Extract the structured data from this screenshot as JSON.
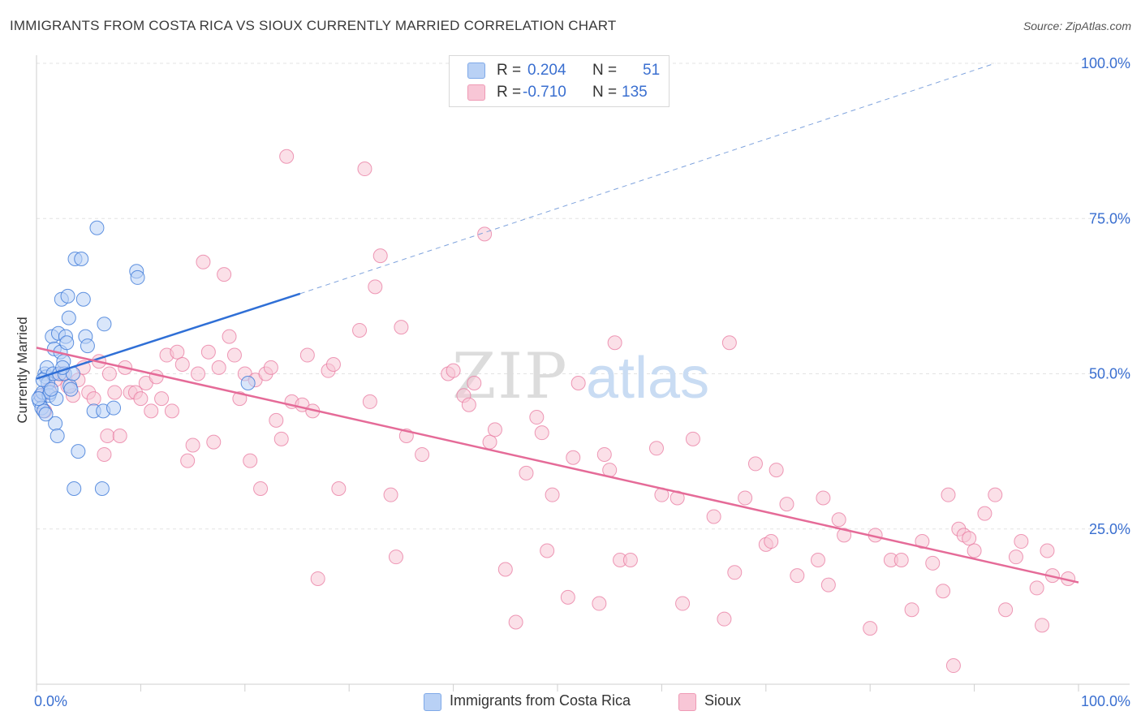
{
  "title": "IMMIGRANTS FROM COSTA RICA VS SIOUX CURRENTLY MARRIED CORRELATION CHART",
  "source": "Source: ZipAtlas.com",
  "watermark": {
    "zip": "ZIP",
    "atlas": "atlas"
  },
  "legend": {
    "r_label": "R =",
    "n_label": "N =",
    "rows": [
      {
        "r": "0.204",
        "n": "51",
        "color": "#7fa9e8",
        "fill": "#b9d1f5"
      },
      {
        "r": "-0.710",
        "n": "135",
        "color": "#ef9ab5",
        "fill": "#f8c6d6"
      }
    ]
  },
  "colors": {
    "blue": "#3b78d8",
    "blue_line": "#2f6fd6",
    "pink": "#e8789f",
    "pink_line": "#e56b98",
    "axis_text": "#3a6fd0",
    "grid": "#e3e3e3"
  },
  "chart_data": {
    "type": "scatter",
    "title": "IMMIGRANTS FROM COSTA RICA VS SIOUX CURRENTLY MARRIED CORRELATION CHART",
    "xlabel": "",
    "ylabel": "Currently Married",
    "xlim": [
      0,
      100
    ],
    "ylim": [
      0,
      100
    ],
    "x_tick_labels": [
      "0.0%",
      "100.0%"
    ],
    "y_tick_labels": [
      "25.0%",
      "50.0%",
      "75.0%",
      "100.0%"
    ],
    "y_ticks": [
      25,
      50,
      75,
      100
    ],
    "grid": true,
    "legend_position": "top-center",
    "bottom_legend": [
      "Immigrants from Costa Rica",
      "Sioux"
    ],
    "series": [
      {
        "name": "Immigrants from Costa Rica",
        "r": 0.204,
        "n": 51,
        "trend": {
          "x0": 0,
          "y0": 49.2,
          "x1": 25.3,
          "y1": 62.9,
          "dash_to_x": 92,
          "dash_to_y": 100
        },
        "points": [
          [
            0.3,
            45.5
          ],
          [
            0.4,
            46.5
          ],
          [
            0.5,
            44.5
          ],
          [
            0.6,
            47
          ],
          [
            0.7,
            44
          ],
          [
            0.8,
            50
          ],
          [
            0.9,
            49.5
          ],
          [
            1,
            51
          ],
          [
            1.1,
            48.5
          ],
          [
            1.2,
            46.5
          ],
          [
            1.3,
            47
          ],
          [
            1.5,
            56
          ],
          [
            1.6,
            50
          ],
          [
            1.7,
            54
          ],
          [
            1.8,
            42
          ],
          [
            1.9,
            46
          ],
          [
            2,
            40
          ],
          [
            2.1,
            56.5
          ],
          [
            2.2,
            50
          ],
          [
            2.3,
            53.5
          ],
          [
            2.4,
            62
          ],
          [
            2.6,
            52
          ],
          [
            2.7,
            50
          ],
          [
            2.8,
            56
          ],
          [
            2.9,
            55
          ],
          [
            3,
            62.5
          ],
          [
            3.1,
            59
          ],
          [
            3.2,
            48
          ],
          [
            3.3,
            47.5
          ],
          [
            3.5,
            50
          ],
          [
            3.6,
            31.5
          ],
          [
            3.7,
            68.5
          ],
          [
            4,
            37.5
          ],
          [
            4.3,
            68.5
          ],
          [
            4.5,
            62
          ],
          [
            4.7,
            56
          ],
          [
            4.9,
            54.5
          ],
          [
            5.5,
            44
          ],
          [
            5.8,
            73.5
          ],
          [
            6.3,
            31.5
          ],
          [
            6.4,
            44
          ],
          [
            6.5,
            58
          ],
          [
            7.4,
            44.5
          ],
          [
            9.6,
            66.5
          ],
          [
            9.7,
            65.5
          ],
          [
            20.3,
            48.5
          ],
          [
            0.2,
            46
          ],
          [
            0.6,
            49
          ],
          [
            1.4,
            47.5
          ],
          [
            2.5,
            51
          ],
          [
            0.9,
            43.5
          ]
        ]
      },
      {
        "name": "Sioux",
        "r": -0.71,
        "n": 135,
        "trend": {
          "x0": 0,
          "y0": 54.2,
          "x1": 100,
          "y1": 16.4
        },
        "points": [
          [
            0.5,
            46.5
          ],
          [
            0.8,
            44
          ],
          [
            1.2,
            47.5
          ],
          [
            1.8,
            49
          ],
          [
            2.5,
            50
          ],
          [
            3,
            48
          ],
          [
            3.5,
            46.5
          ],
          [
            4,
            49
          ],
          [
            4.5,
            51
          ],
          [
            5,
            47
          ],
          [
            5.5,
            46
          ],
          [
            6,
            52
          ],
          [
            6.5,
            37
          ],
          [
            6.8,
            40
          ],
          [
            7,
            50
          ],
          [
            7.5,
            47
          ],
          [
            8,
            40
          ],
          [
            8.5,
            51
          ],
          [
            9,
            47
          ],
          [
            9.5,
            47
          ],
          [
            10,
            46
          ],
          [
            10.5,
            48.5
          ],
          [
            11,
            44
          ],
          [
            11.5,
            49.5
          ],
          [
            12,
            46
          ],
          [
            12.5,
            53
          ],
          [
            13,
            44
          ],
          [
            13.5,
            53.5
          ],
          [
            14,
            51.5
          ],
          [
            14.5,
            36
          ],
          [
            15,
            38.5
          ],
          [
            15.5,
            50
          ],
          [
            16,
            68
          ],
          [
            16.5,
            53.5
          ],
          [
            17,
            39
          ],
          [
            17.5,
            51
          ],
          [
            18,
            66
          ],
          [
            18.5,
            56
          ],
          [
            19,
            53
          ],
          [
            19.5,
            46
          ],
          [
            20,
            50
          ],
          [
            20.5,
            36
          ],
          [
            21,
            49
          ],
          [
            21.5,
            31.5
          ],
          [
            22,
            50
          ],
          [
            22.5,
            51
          ],
          [
            23,
            42.5
          ],
          [
            23.5,
            39.5
          ],
          [
            24,
            85
          ],
          [
            24.5,
            45.5
          ],
          [
            25.5,
            45
          ],
          [
            26,
            53
          ],
          [
            26.5,
            44
          ],
          [
            27,
            17
          ],
          [
            28,
            50.5
          ],
          [
            28.5,
            51.5
          ],
          [
            29,
            31.5
          ],
          [
            31,
            57
          ],
          [
            31.5,
            83
          ],
          [
            32,
            45.5
          ],
          [
            32.5,
            64
          ],
          [
            33,
            69
          ],
          [
            34,
            30.5
          ],
          [
            34.5,
            20.5
          ],
          [
            35,
            57.5
          ],
          [
            35.5,
            40
          ],
          [
            37,
            37
          ],
          [
            39.5,
            50
          ],
          [
            40,
            50.5
          ],
          [
            41,
            46.5
          ],
          [
            41.5,
            45
          ],
          [
            42,
            48.5
          ],
          [
            43,
            72.5
          ],
          [
            43.5,
            39
          ],
          [
            44,
            41
          ],
          [
            45,
            18.5
          ],
          [
            46,
            10
          ],
          [
            47,
            34
          ],
          [
            48,
            43
          ],
          [
            48.5,
            40.5
          ],
          [
            49,
            21.5
          ],
          [
            49.5,
            30.5
          ],
          [
            51,
            14
          ],
          [
            51.5,
            36.5
          ],
          [
            52,
            48.5
          ],
          [
            54,
            13
          ],
          [
            54.5,
            37
          ],
          [
            55,
            34.5
          ],
          [
            55.5,
            55
          ],
          [
            56,
            20
          ],
          [
            57,
            20
          ],
          [
            59.5,
            38
          ],
          [
            60,
            30.5
          ],
          [
            61.5,
            30
          ],
          [
            62,
            13
          ],
          [
            63,
            39.5
          ],
          [
            65,
            27
          ],
          [
            66,
            10.5
          ],
          [
            66.5,
            55
          ],
          [
            67,
            18
          ],
          [
            68,
            30
          ],
          [
            69,
            35.5
          ],
          [
            70,
            22.5
          ],
          [
            70.5,
            23
          ],
          [
            71,
            34.5
          ],
          [
            72,
            29
          ],
          [
            73,
            17.5
          ],
          [
            75,
            20
          ],
          [
            75.5,
            30
          ],
          [
            76,
            16
          ],
          [
            77,
            26.5
          ],
          [
            77.5,
            24
          ],
          [
            80,
            9
          ],
          [
            80.5,
            24
          ],
          [
            82,
            20
          ],
          [
            83,
            20
          ],
          [
            84,
            12
          ],
          [
            85,
            23
          ],
          [
            86,
            19.5
          ],
          [
            87,
            15
          ],
          [
            87.5,
            30.5
          ],
          [
            88,
            3
          ],
          [
            88.5,
            25
          ],
          [
            89,
            24
          ],
          [
            89.5,
            23.5
          ],
          [
            90,
            21.5
          ],
          [
            91,
            27.5
          ],
          [
            92,
            30.5
          ],
          [
            93,
            12
          ],
          [
            94,
            20.5
          ],
          [
            94.5,
            23
          ],
          [
            96,
            15.5
          ],
          [
            96.5,
            9.5
          ],
          [
            97,
            21.5
          ],
          [
            97.5,
            17.5
          ],
          [
            99,
            17
          ]
        ]
      }
    ]
  }
}
